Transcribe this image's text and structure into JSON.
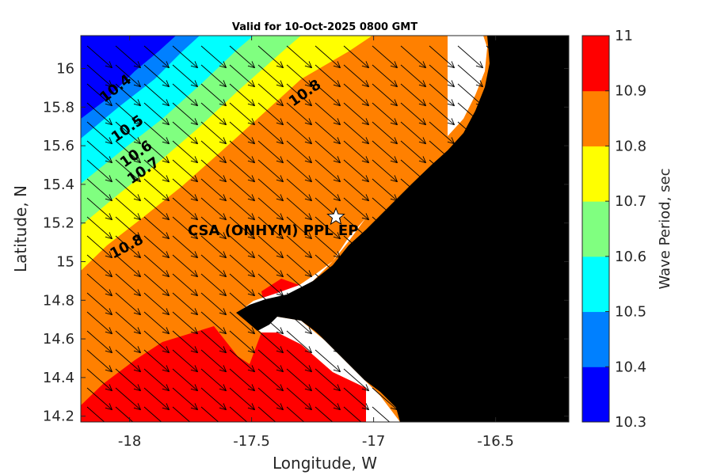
{
  "title": "Valid for 10-Oct-2025 0800 GMT",
  "xlabel": "Longitude, W",
  "ylabel": "Latitude, N",
  "site_label": "CSA (ONHYM) PPL EP",
  "colorbar": {
    "label": "Wave Period, sec",
    "ticks": [
      "10.3",
      "10.4",
      "10.5",
      "10.6",
      "10.7",
      "10.8",
      "10.9",
      "11"
    ],
    "colors": [
      "#0000ff",
      "#0080ff",
      "#00ffff",
      "#80ff80",
      "#ffff00",
      "#ff8000",
      "#ff0000"
    ]
  },
  "chart_data": {
    "type": "contour-map",
    "title": "Valid for 10-Oct-2025 0800 GMT",
    "xlabel": "Longitude, W",
    "ylabel": "Latitude, N",
    "xlim": [
      -18.2,
      -16.2
    ],
    "ylim": [
      14.17,
      16.17
    ],
    "x_ticks": [
      "-18",
      "-17.5",
      "-17",
      "-16.5"
    ],
    "y_ticks": [
      "14.2",
      "14.4",
      "14.6",
      "14.8",
      "15",
      "15.2",
      "15.4",
      "15.6",
      "15.8",
      "16"
    ],
    "variable": "Wave Period, sec",
    "color_range": [
      10.3,
      11
    ],
    "contour_labels": [
      {
        "text": "10.4",
        "lon": -18.05,
        "lat": 15.85
      },
      {
        "text": "10.5",
        "lon": -17.97,
        "lat": 15.67
      },
      {
        "text": "10.6",
        "lon": -17.92,
        "lat": 15.55
      },
      {
        "text": "10.7",
        "lon": -17.87,
        "lat": 15.46
      },
      {
        "text": "10.8",
        "lon": -17.28,
        "lat": 15.86
      },
      {
        "text": "10.8",
        "lon": -17.99,
        "lat": 15.06
      }
    ],
    "site": {
      "name": "CSA (ONHYM) PPL EP",
      "lon": -17.12,
      "lat": 15.23
    },
    "arrows": "wave direction vectors pointing toward the southeast"
  }
}
